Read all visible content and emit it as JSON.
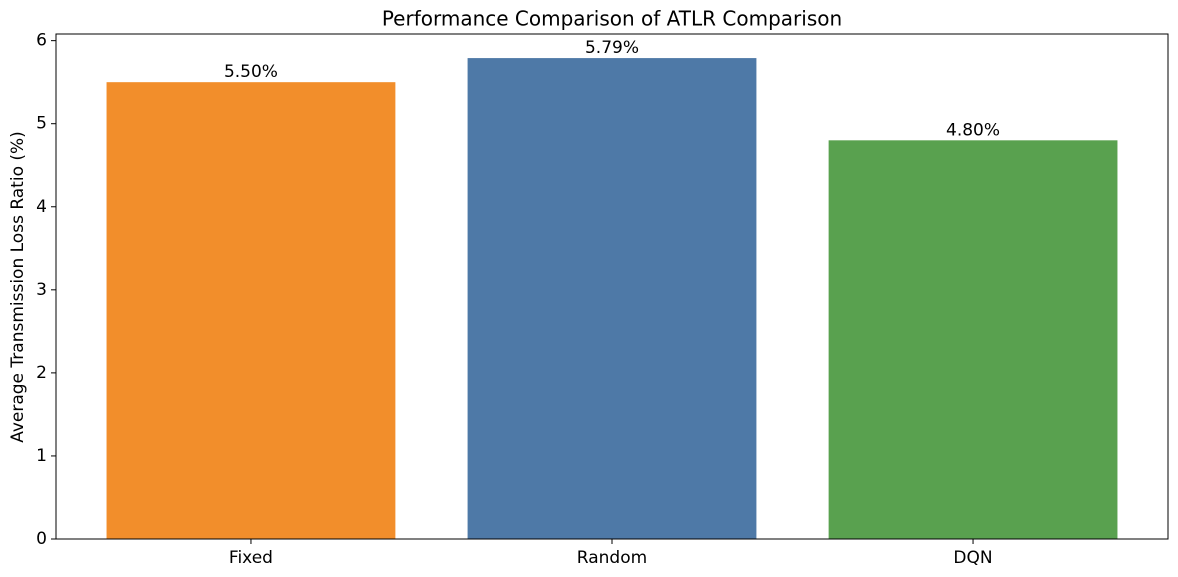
{
  "chart_data": {
    "type": "bar",
    "title": "Performance Comparison of ATLR Comparison",
    "y_label": "Average Transmission Loss Ratio (%)",
    "categories": [
      "Fixed",
      "Random",
      "DQN"
    ],
    "values": [
      5.5,
      5.79,
      4.8
    ],
    "value_labels": [
      "5.50%",
      "5.79%",
      "4.80%"
    ],
    "colors": [
      "#f28e2b",
      "#4e79a7",
      "#59a14f"
    ],
    "ylim": [
      0,
      6.08
    ],
    "yticks": [
      0,
      1,
      2,
      3,
      4,
      5,
      6
    ],
    "grid": false
  }
}
